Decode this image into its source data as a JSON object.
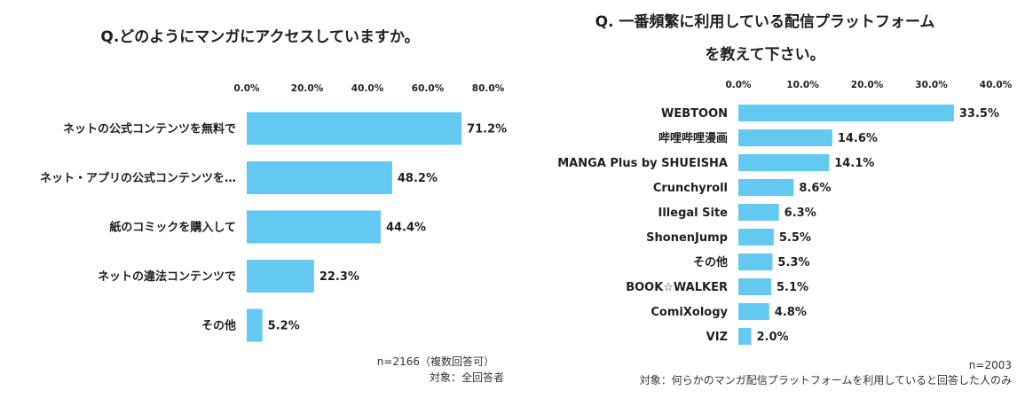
{
  "chart_data": [
    {
      "type": "bar",
      "orientation": "horizontal",
      "title": "Q.どのようにマンガにアクセスしていますか。",
      "categories": [
        "ネットの公式コンテンツを無料で",
        "ネット・アプリの公式コンテンツを…",
        "紙のコミックを購入して",
        "ネットの違法コンテンツで",
        "その他"
      ],
      "values": [
        71.2,
        48.2,
        44.4,
        22.3,
        5.2
      ],
      "value_labels": [
        "71.2%",
        "48.2%",
        "44.4%",
        "22.3%",
        "5.2%"
      ],
      "xlim": [
        0,
        80
      ],
      "ticks": [
        "0.0%",
        "20.0%",
        "40.0%",
        "60.0%",
        "80.0%"
      ],
      "tick_position": "top",
      "grid": false,
      "bar_color": "#63c9f0",
      "notes": [
        "n=2166（複数回答可）",
        "対象：全回答者"
      ]
    },
    {
      "type": "bar",
      "orientation": "horizontal",
      "title_lines": [
        "Q. 一番頻繁に利用している配信プラットフォーム",
        "を教えて下さい。"
      ],
      "categories": [
        "WEBTOON",
        "哔哩哔哩漫画",
        "MANGA Plus by SHUEISHA",
        "Crunchyroll",
        "Illegal Site",
        "ShonenJump",
        "その他",
        "BOOK☆WALKER",
        "ComiXology",
        "VIZ"
      ],
      "values": [
        33.5,
        14.6,
        14.1,
        8.6,
        6.3,
        5.5,
        5.3,
        5.1,
        4.8,
        2.0
      ],
      "value_labels": [
        "33.5%",
        "14.6%",
        "14.1%",
        "8.6%",
        "6.3%",
        "5.5%",
        "5.3%",
        "5.1%",
        "4.8%",
        "2.0%"
      ],
      "xlim": [
        0,
        40
      ],
      "ticks": [
        "0.0%",
        "10.0%",
        "20.0%",
        "30.0%",
        "40.0%"
      ],
      "tick_position": "top",
      "grid": false,
      "bar_color": "#63c9f0",
      "notes": [
        "n=2003",
        "対象：何らかのマンガ配信プラットフォームを利用していると回答した人のみ"
      ]
    }
  ]
}
